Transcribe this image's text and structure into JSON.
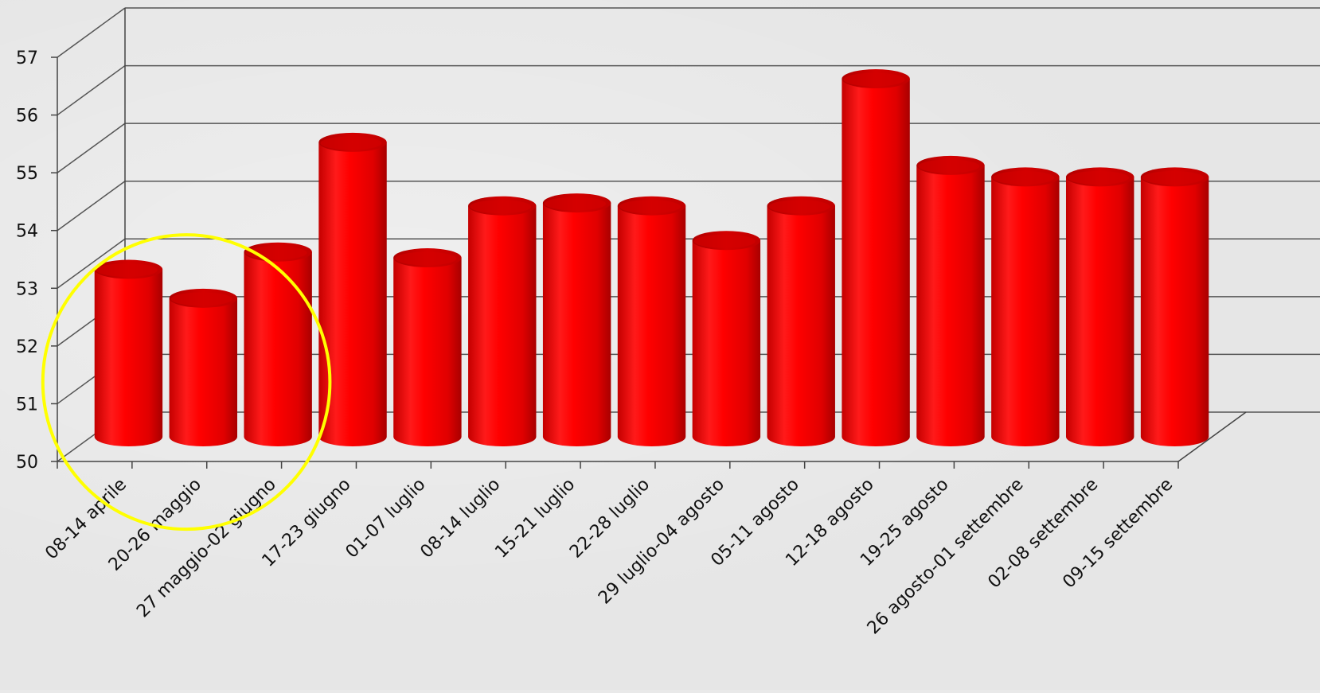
{
  "chart_data": {
    "type": "bar",
    "style": "3d-cylinder",
    "categories": [
      "08-14 aprile",
      "20-26 maggio",
      "27 maggio-02 giugno",
      "17-23 giugno",
      "01-07 luglio",
      "08-14 luglio",
      "15-21 luglio",
      "22-28 luglio",
      "29 luglio-04 agosto",
      "05-11 agosto",
      "12-18 agosto",
      "19-25 agosto",
      "26 agosto-01 settembre",
      "02-08 settembre",
      "09-15 settembre"
    ],
    "values": [
      52.9,
      52.4,
      53.2,
      55.1,
      53.1,
      54.0,
      54.05,
      54.0,
      53.4,
      54.0,
      56.2,
      54.7,
      54.5,
      54.5,
      54.5
    ],
    "y_ticks": [
      "50",
      "51",
      "52",
      "53",
      "54",
      "55",
      "56",
      "57"
    ],
    "ylim": [
      50,
      57
    ],
    "grid": true,
    "title": "",
    "xlabel": "",
    "ylabel": "",
    "colors": {
      "bar": "#ff0000",
      "bar_dark": "#b80000",
      "bar_top": "#d00000",
      "highlight_ellipse": "#ffff00",
      "gridline": "#555555",
      "axis": "#444444"
    },
    "annotation": {
      "type": "ellipse",
      "highlights_categories": [
        "08-14 aprile",
        "20-26 maggio",
        "27 maggio-02 giugno"
      ]
    }
  }
}
